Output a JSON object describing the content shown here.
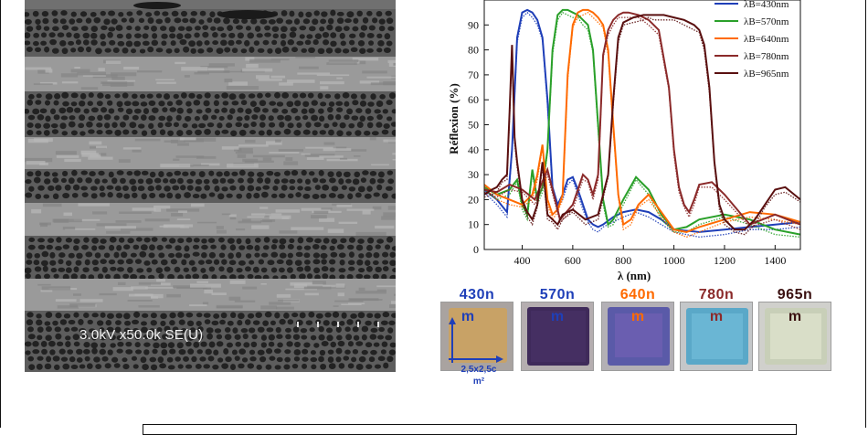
{
  "sem": {
    "caption": "3.0kV x50.0k SE(U)"
  },
  "chart_data": {
    "type": "line",
    "xlabel": "λ (nm)",
    "ylabel": "Réflexion (%)",
    "xlim": [
      250,
      1500
    ],
    "ylim": [
      0,
      100
    ],
    "xticks": [
      400,
      600,
      800,
      1000,
      1200,
      1400
    ],
    "yticks": [
      0,
      10,
      20,
      30,
      40,
      50,
      60,
      70,
      80,
      90
    ],
    "legend_position": "top-right",
    "series": [
      {
        "name": "λB=430nm",
        "color": "#1f3fb8",
        "x": [
          250,
          300,
          340,
          360,
          380,
          400,
          420,
          440,
          460,
          480,
          500,
          520,
          540,
          560,
          580,
          600,
          620,
          640,
          660,
          680,
          700,
          720,
          760,
          800,
          850,
          900,
          950,
          1000,
          1100,
          1200,
          1300,
          1400,
          1500
        ],
        "y": [
          24,
          20,
          15,
          40,
          85,
          95,
          96,
          95,
          92,
          85,
          60,
          25,
          18,
          22,
          28,
          29,
          24,
          18,
          12,
          10,
          9,
          10,
          13,
          15,
          16,
          15,
          12,
          8,
          7,
          8,
          9,
          10,
          11
        ]
      },
      {
        "name": "λB=570nm",
        "color": "#2aa02a",
        "x": [
          250,
          300,
          350,
          380,
          400,
          420,
          440,
          460,
          480,
          500,
          520,
          540,
          560,
          580,
          600,
          620,
          640,
          660,
          680,
          700,
          720,
          740,
          760,
          800,
          850,
          900,
          950,
          1000,
          1050,
          1100,
          1200,
          1300,
          1400,
          1500
        ],
        "y": [
          25,
          22,
          24,
          28,
          18,
          14,
          32,
          20,
          25,
          40,
          80,
          94,
          96,
          96,
          95,
          94,
          92,
          90,
          80,
          50,
          20,
          10,
          12,
          20,
          29,
          24,
          14,
          8,
          9,
          12,
          14,
          12,
          8,
          6
        ]
      },
      {
        "name": "λB=640nm",
        "color": "#ff6a00",
        "x": [
          250,
          300,
          350,
          400,
          440,
          460,
          480,
          500,
          520,
          540,
          560,
          580,
          600,
          620,
          640,
          660,
          680,
          700,
          720,
          740,
          760,
          780,
          800,
          830,
          860,
          900,
          950,
          1000,
          1050,
          1100,
          1200,
          1300,
          1400,
          1500
        ],
        "y": [
          26,
          22,
          20,
          18,
          22,
          30,
          42,
          20,
          14,
          16,
          22,
          70,
          90,
          95,
          96,
          96,
          95,
          93,
          90,
          80,
          50,
          22,
          10,
          12,
          18,
          22,
          15,
          8,
          7,
          9,
          12,
          15,
          14,
          11
        ]
      },
      {
        "name": "λB=780nm",
        "color": "#8b2a2a",
        "x": [
          250,
          300,
          350,
          400,
          450,
          500,
          550,
          600,
          640,
          660,
          680,
          700,
          720,
          740,
          760,
          780,
          800,
          820,
          860,
          900,
          940,
          980,
          1000,
          1020,
          1040,
          1060,
          1080,
          1100,
          1150,
          1200,
          1300,
          1400,
          1500
        ],
        "y": [
          24,
          23,
          26,
          24,
          20,
          32,
          12,
          18,
          30,
          28,
          22,
          30,
          78,
          88,
          92,
          94,
          95,
          95,
          94,
          92,
          88,
          65,
          40,
          25,
          18,
          15,
          20,
          26,
          27,
          22,
          10,
          14,
          10
        ]
      },
      {
        "name": "λB=965nm",
        "color": "#5a1010",
        "x": [
          250,
          280,
          300,
          320,
          340,
          350,
          360,
          370,
          380,
          400,
          420,
          440,
          460,
          480,
          500,
          520,
          540,
          560,
          600,
          650,
          700,
          740,
          760,
          780,
          800,
          840,
          880,
          900,
          920,
          960,
          1000,
          1040,
          1080,
          1100,
          1120,
          1140,
          1160,
          1180,
          1200,
          1240,
          1280,
          1320,
          1360,
          1400,
          1440,
          1500
        ],
        "y": [
          22,
          24,
          25,
          28,
          30,
          55,
          82,
          45,
          35,
          20,
          15,
          12,
          18,
          35,
          14,
          12,
          10,
          14,
          16,
          12,
          14,
          30,
          60,
          85,
          91,
          93,
          94,
          94,
          94,
          94,
          93,
          92,
          90,
          88,
          82,
          65,
          35,
          18,
          12,
          8,
          8,
          12,
          18,
          24,
          25,
          20
        ]
      }
    ]
  },
  "samples": [
    {
      "label": "430n",
      "m": "m",
      "color": "#1f3fb8",
      "bg": "#c8a266"
    },
    {
      "label": "570n",
      "m": "m",
      "color": "#1f3fb8",
      "bg": "#3f2a5a"
    },
    {
      "label": "640n",
      "m": "m",
      "color": "#ff6a00",
      "bg": "#5a5aa8"
    },
    {
      "label": "780n",
      "m": "m",
      "color": "#8b2a2a",
      "bg": "#5aa8c8"
    },
    {
      "label": "965n",
      "m": "m",
      "color": "#3a1010",
      "bg": "#c8cfb8"
    }
  ],
  "size_label": {
    "line1": "2,5x2,5c",
    "line2": "m²"
  }
}
